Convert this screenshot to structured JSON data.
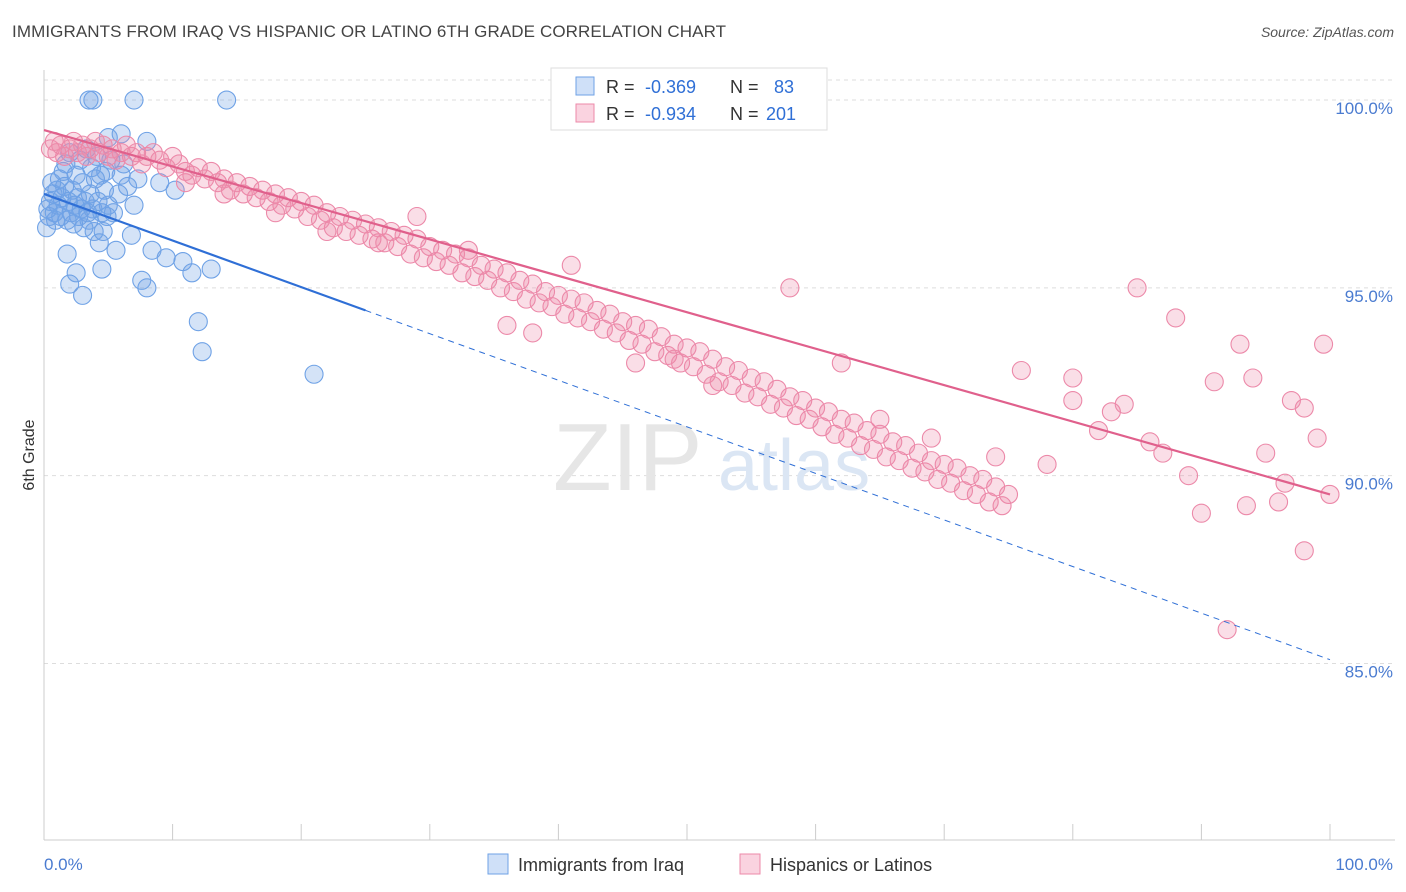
{
  "title": "IMMIGRANTS FROM IRAQ VS HISPANIC OR LATINO 6TH GRADE CORRELATION CHART",
  "source": "Source: ZipAtlas.com",
  "watermark": {
    "zip": "ZIP",
    "atlas": "atlas"
  },
  "colors": {
    "blue": "#6fa2e6",
    "blue_line": "#2f6fd6",
    "pink": "#ec89a9",
    "pink_line": "#e0608c",
    "grid": "#dddddd",
    "tick_text": "#4a7bd0"
  },
  "stats_legend": {
    "rows": [
      {
        "r_label": "R =",
        "r_value": "-0.369",
        "n_label": "N =",
        "n_value": "83"
      },
      {
        "r_label": "R =",
        "r_value": "-0.934",
        "n_label": "N =",
        "n_value": "201"
      }
    ]
  },
  "chart_data": {
    "type": "scatter",
    "title": "IMMIGRANTS FROM IRAQ VS HISPANIC OR LATINO 6TH GRADE CORRELATION CHART",
    "xlabel": "",
    "ylabel": "6th Grade",
    "xlim": [
      0,
      100
    ],
    "ylim": [
      80.3,
      100.8
    ],
    "y_ticks": [
      85.0,
      90.0,
      95.0,
      100.0
    ],
    "y_tick_labels": [
      "85.0%",
      "90.0%",
      "95.0%",
      "100.0%"
    ],
    "x_tick_labels": [
      "0.0%",
      "100.0%"
    ],
    "grid": true,
    "legend_position": "bottom",
    "series": [
      {
        "name": "Immigrants from Iraq",
        "color": "#6fa2e6",
        "R": -0.369,
        "N": 83,
        "trend": {
          "x": [
            0,
            25
          ],
          "y": [
            97.5,
            94.4
          ],
          "dashed_to": [
            100,
            85.1
          ]
        },
        "points": [
          [
            0.2,
            96.6
          ],
          [
            0.3,
            97.1
          ],
          [
            0.4,
            96.9
          ],
          [
            0.5,
            97.3
          ],
          [
            0.6,
            97.8
          ],
          [
            0.7,
            97.5
          ],
          [
            0.8,
            97.0
          ],
          [
            0.9,
            96.8
          ],
          [
            1.0,
            97.6
          ],
          [
            1.1,
            97.2
          ],
          [
            1.2,
            97.9
          ],
          [
            1.3,
            96.9
          ],
          [
            1.4,
            97.4
          ],
          [
            1.5,
            98.1
          ],
          [
            1.6,
            97.7
          ],
          [
            1.7,
            98.3
          ],
          [
            1.8,
            96.8
          ],
          [
            1.9,
            97.3
          ],
          [
            2.0,
            98.6
          ],
          [
            2.1,
            97.0
          ],
          [
            2.2,
            97.6
          ],
          [
            2.3,
            96.7
          ],
          [
            2.4,
            97.2
          ],
          [
            2.5,
            98.0
          ],
          [
            2.6,
            97.4
          ],
          [
            2.7,
            96.9
          ],
          [
            2.8,
            98.4
          ],
          [
            2.9,
            97.1
          ],
          [
            3.0,
            97.8
          ],
          [
            3.1,
            96.6
          ],
          [
            3.2,
            97.3
          ],
          [
            3.3,
            98.7
          ],
          [
            3.4,
            97.0
          ],
          [
            3.5,
            96.8
          ],
          [
            3.6,
            97.5
          ],
          [
            3.7,
            98.2
          ],
          [
            3.8,
            97.1
          ],
          [
            3.9,
            96.5
          ],
          [
            4.0,
            97.9
          ],
          [
            4.1,
            98.5
          ],
          [
            4.2,
            97.3
          ],
          [
            4.3,
            96.2
          ],
          [
            4.4,
            98.0
          ],
          [
            4.5,
            97.0
          ],
          [
            4.6,
            96.5
          ],
          [
            4.7,
            97.6
          ],
          [
            4.8,
            98.1
          ],
          [
            4.9,
            96.9
          ],
          [
            5.0,
            97.2
          ],
          [
            5.2,
            98.4
          ],
          [
            5.4,
            97.0
          ],
          [
            5.6,
            96.0
          ],
          [
            5.8,
            97.5
          ],
          [
            6.0,
            99.1
          ],
          [
            6.2,
            98.3
          ],
          [
            6.5,
            97.7
          ],
          [
            6.8,
            96.4
          ],
          [
            7.0,
            100.0
          ],
          [
            7.3,
            97.9
          ],
          [
            7.6,
            95.2
          ],
          [
            8.0,
            98.9
          ],
          [
            8.4,
            96.0
          ],
          [
            9.0,
            97.8
          ],
          [
            9.5,
            95.8
          ],
          [
            10.2,
            97.6
          ],
          [
            10.8,
            95.7
          ],
          [
            11.5,
            95.4
          ],
          [
            12.0,
            94.1
          ],
          [
            13.0,
            95.5
          ],
          [
            14.2,
            100.0
          ],
          [
            12.3,
            93.3
          ],
          [
            21.0,
            92.7
          ],
          [
            3.5,
            100.0
          ],
          [
            3.8,
            100.0
          ],
          [
            2.0,
            95.1
          ],
          [
            3.0,
            94.8
          ],
          [
            2.5,
            95.4
          ],
          [
            1.8,
            95.9
          ],
          [
            4.5,
            95.5
          ],
          [
            5.0,
            99.0
          ],
          [
            6.0,
            98.0
          ],
          [
            7.0,
            97.2
          ],
          [
            8.0,
            95.0
          ]
        ]
      },
      {
        "name": "Hispanics or Latinos",
        "color": "#ec89a9",
        "R": -0.934,
        "N": 201,
        "trend": {
          "x": [
            0,
            100
          ],
          "y": [
            99.2,
            89.5
          ]
        },
        "points": [
          [
            0.5,
            98.7
          ],
          [
            0.8,
            98.9
          ],
          [
            1.0,
            98.6
          ],
          [
            1.3,
            98.8
          ],
          [
            1.6,
            98.5
          ],
          [
            2.0,
            98.7
          ],
          [
            2.3,
            98.9
          ],
          [
            2.6,
            98.6
          ],
          [
            3.0,
            98.8
          ],
          [
            3.3,
            98.5
          ],
          [
            3.6,
            98.7
          ],
          [
            4.0,
            98.9
          ],
          [
            4.3,
            98.6
          ],
          [
            4.6,
            98.8
          ],
          [
            5.0,
            98.5
          ],
          [
            5.3,
            98.7
          ],
          [
            5.6,
            98.4
          ],
          [
            6.0,
            98.6
          ],
          [
            6.4,
            98.8
          ],
          [
            6.8,
            98.5
          ],
          [
            7.2,
            98.6
          ],
          [
            7.6,
            98.3
          ],
          [
            8.0,
            98.5
          ],
          [
            8.5,
            98.6
          ],
          [
            9.0,
            98.4
          ],
          [
            9.5,
            98.2
          ],
          [
            10.0,
            98.5
          ],
          [
            10.5,
            98.3
          ],
          [
            11.0,
            98.1
          ],
          [
            11.5,
            98.0
          ],
          [
            12.0,
            98.2
          ],
          [
            12.5,
            97.9
          ],
          [
            13.0,
            98.1
          ],
          [
            13.5,
            97.8
          ],
          [
            14.0,
            97.9
          ],
          [
            14.5,
            97.6
          ],
          [
            15.0,
            97.8
          ],
          [
            15.5,
            97.5
          ],
          [
            16.0,
            97.7
          ],
          [
            16.5,
            97.4
          ],
          [
            17.0,
            97.6
          ],
          [
            17.5,
            97.3
          ],
          [
            18.0,
            97.5
          ],
          [
            18.5,
            97.2
          ],
          [
            19.0,
            97.4
          ],
          [
            19.5,
            97.1
          ],
          [
            20.0,
            97.3
          ],
          [
            20.5,
            96.9
          ],
          [
            21.0,
            97.2
          ],
          [
            21.5,
            96.8
          ],
          [
            22.0,
            97.0
          ],
          [
            22.5,
            96.6
          ],
          [
            23.0,
            96.9
          ],
          [
            23.5,
            96.5
          ],
          [
            24.0,
            96.8
          ],
          [
            24.5,
            96.4
          ],
          [
            25.0,
            96.7
          ],
          [
            25.5,
            96.3
          ],
          [
            26.0,
            96.6
          ],
          [
            26.5,
            96.2
          ],
          [
            27.0,
            96.5
          ],
          [
            27.5,
            96.1
          ],
          [
            28.0,
            96.4
          ],
          [
            28.5,
            95.9
          ],
          [
            29.0,
            96.3
          ],
          [
            29.5,
            95.8
          ],
          [
            30.0,
            96.1
          ],
          [
            30.5,
            95.7
          ],
          [
            31.0,
            96.0
          ],
          [
            31.5,
            95.6
          ],
          [
            32.0,
            95.9
          ],
          [
            32.5,
            95.4
          ],
          [
            33.0,
            95.8
          ],
          [
            33.5,
            95.3
          ],
          [
            34.0,
            95.6
          ],
          [
            34.5,
            95.2
          ],
          [
            35.0,
            95.5
          ],
          [
            35.5,
            95.0
          ],
          [
            36.0,
            95.4
          ],
          [
            36.5,
            94.9
          ],
          [
            37.0,
            95.2
          ],
          [
            37.5,
            94.7
          ],
          [
            38.0,
            95.1
          ],
          [
            38.5,
            94.6
          ],
          [
            39.0,
            94.9
          ],
          [
            39.5,
            94.5
          ],
          [
            40.0,
            94.8
          ],
          [
            40.5,
            94.3
          ],
          [
            41.0,
            94.7
          ],
          [
            41.5,
            94.2
          ],
          [
            42.0,
            94.6
          ],
          [
            42.5,
            94.1
          ],
          [
            43.0,
            94.4
          ],
          [
            43.5,
            93.9
          ],
          [
            44.0,
            94.3
          ],
          [
            44.5,
            93.8
          ],
          [
            45.0,
            94.1
          ],
          [
            45.5,
            93.6
          ],
          [
            46.0,
            94.0
          ],
          [
            46.5,
            93.5
          ],
          [
            47.0,
            93.9
          ],
          [
            47.5,
            93.3
          ],
          [
            48.0,
            93.7
          ],
          [
            48.5,
            93.2
          ],
          [
            49.0,
            93.5
          ],
          [
            49.5,
            93.0
          ],
          [
            50.0,
            93.4
          ],
          [
            50.5,
            92.9
          ],
          [
            51.0,
            93.3
          ],
          [
            51.5,
            92.7
          ],
          [
            52.0,
            93.1
          ],
          [
            52.5,
            92.5
          ],
          [
            53.0,
            92.9
          ],
          [
            53.5,
            92.4
          ],
          [
            54.0,
            92.8
          ],
          [
            54.5,
            92.2
          ],
          [
            55.0,
            92.6
          ],
          [
            55.5,
            92.1
          ],
          [
            56.0,
            92.5
          ],
          [
            56.5,
            91.9
          ],
          [
            57.0,
            92.3
          ],
          [
            57.5,
            91.8
          ],
          [
            58.0,
            92.1
          ],
          [
            58.5,
            91.6
          ],
          [
            59.0,
            92.0
          ],
          [
            59.5,
            91.5
          ],
          [
            60.0,
            91.8
          ],
          [
            60.5,
            91.3
          ],
          [
            61.0,
            91.7
          ],
          [
            61.5,
            91.1
          ],
          [
            62.0,
            91.5
          ],
          [
            62.5,
            91.0
          ],
          [
            63.0,
            91.4
          ],
          [
            63.5,
            90.8
          ],
          [
            64.0,
            91.2
          ],
          [
            64.5,
            90.7
          ],
          [
            65.0,
            91.1
          ],
          [
            65.5,
            90.5
          ],
          [
            66.0,
            90.9
          ],
          [
            66.5,
            90.4
          ],
          [
            67.0,
            90.8
          ],
          [
            67.5,
            90.2
          ],
          [
            68.0,
            90.6
          ],
          [
            68.5,
            90.1
          ],
          [
            69.0,
            90.4
          ],
          [
            69.5,
            89.9
          ],
          [
            70.0,
            90.3
          ],
          [
            70.5,
            89.8
          ],
          [
            71.0,
            90.2
          ],
          [
            71.5,
            89.6
          ],
          [
            72.0,
            90.0
          ],
          [
            72.5,
            89.5
          ],
          [
            73.0,
            89.9
          ],
          [
            73.5,
            89.3
          ],
          [
            74.0,
            89.7
          ],
          [
            74.5,
            89.2
          ],
          [
            75.0,
            89.5
          ],
          [
            11.0,
            97.8
          ],
          [
            14.0,
            97.5
          ],
          [
            18.0,
            97.0
          ],
          [
            22.0,
            96.5
          ],
          [
            26.0,
            96.2
          ],
          [
            29.0,
            96.9
          ],
          [
            33.0,
            96.0
          ],
          [
            36.0,
            94.0
          ],
          [
            38.0,
            93.8
          ],
          [
            41.0,
            95.6
          ],
          [
            46.0,
            93.0
          ],
          [
            49.0,
            93.1
          ],
          [
            52.0,
            92.4
          ],
          [
            58.0,
            95.0
          ],
          [
            62.0,
            93.0
          ],
          [
            65.0,
            91.5
          ],
          [
            69.0,
            91.0
          ],
          [
            74.0,
            90.5
          ],
          [
            76.0,
            92.8
          ],
          [
            80.0,
            92.0
          ],
          [
            83.0,
            91.7
          ],
          [
            86.0,
            90.9
          ],
          [
            90.0,
            89.0
          ],
          [
            94.0,
            92.6
          ],
          [
            97.0,
            92.0
          ],
          [
            99.0,
            91.0
          ],
          [
            85.0,
            95.0
          ],
          [
            93.0,
            93.5
          ],
          [
            88.0,
            94.2
          ],
          [
            91.0,
            92.5
          ],
          [
            96.0,
            89.3
          ],
          [
            98.0,
            91.8
          ],
          [
            100.0,
            89.5
          ],
          [
            92.0,
            85.9
          ],
          [
            98.0,
            88.0
          ],
          [
            80.0,
            92.6
          ],
          [
            84.0,
            91.9
          ],
          [
            87.0,
            90.6
          ],
          [
            89.0,
            90.0
          ],
          [
            95.0,
            90.6
          ],
          [
            99.5,
            93.5
          ],
          [
            82.0,
            91.2
          ],
          [
            78.0,
            90.3
          ],
          [
            93.5,
            89.2
          ],
          [
            96.5,
            89.8
          ]
        ]
      }
    ]
  },
  "legend": {
    "items": [
      "Immigrants from Iraq",
      "Hispanics or Latinos"
    ]
  }
}
